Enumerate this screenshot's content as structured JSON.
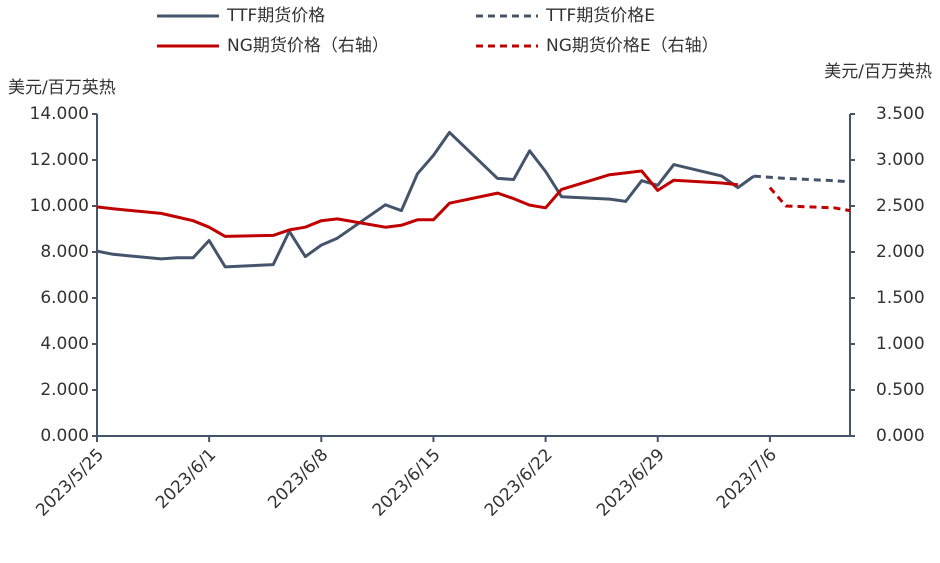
{
  "chart_data": {
    "type": "line",
    "y_label": "美元/百万英热",
    "y2_label": "美元/百万英热",
    "x": [
      "2023/5/25",
      "2023/5/26",
      "2023/5/29",
      "2023/5/30",
      "2023/5/31",
      "2023/6/1",
      "2023/6/2",
      "2023/6/5",
      "2023/6/6",
      "2023/6/7",
      "2023/6/8",
      "2023/6/9",
      "2023/6/12",
      "2023/6/13",
      "2023/6/14",
      "2023/6/15",
      "2023/6/16",
      "2023/6/19",
      "2023/6/20",
      "2023/6/21",
      "2023/6/22",
      "2023/6/23",
      "2023/6/26",
      "2023/6/27",
      "2023/6/28",
      "2023/6/29",
      "2023/6/30",
      "2023/7/3",
      "2023/7/4",
      "2023/7/5",
      "2023/7/6",
      "2023/7/7",
      "2023/7/10",
      "2023/7/11"
    ],
    "series": [
      {
        "name": "TTF期货价格",
        "color": "#44546a",
        "dash": false,
        "values": [
          8.04,
          7.9,
          7.7,
          7.75,
          7.75,
          8.5,
          7.35,
          7.45,
          8.9,
          7.8,
          8.3,
          8.6,
          10.05,
          9.8,
          11.4,
          12.2,
          13.2,
          11.2,
          11.15,
          12.4,
          11.5,
          10.4,
          10.3,
          10.2,
          11.1,
          10.9,
          11.8,
          11.3,
          10.8,
          11.3,
          null,
          null,
          null,
          null
        ]
      },
      {
        "name": "TTF期货价格E",
        "color": "#44546a",
        "dash": true,
        "values": [
          null,
          null,
          null,
          null,
          null,
          null,
          null,
          null,
          null,
          null,
          null,
          null,
          null,
          null,
          null,
          null,
          null,
          null,
          null,
          null,
          null,
          null,
          null,
          null,
          null,
          null,
          null,
          null,
          null,
          11.3,
          11.25,
          11.2,
          11.1,
          11.05
        ]
      },
      {
        "name": "NG期货价格（右轴）",
        "color": "#c00000",
        "dash": false,
        "axis": "y2",
        "values": [
          2.49,
          2.47,
          2.42,
          2.38,
          2.34,
          2.27,
          2.17,
          2.18,
          2.24,
          2.27,
          2.34,
          2.36,
          2.27,
          2.29,
          2.35,
          2.35,
          2.53,
          2.64,
          2.58,
          2.51,
          2.48,
          2.68,
          2.84,
          2.86,
          2.88,
          2.67,
          2.78,
          2.75,
          2.73,
          null,
          null,
          null,
          null,
          null
        ]
      },
      {
        "name": "NG期货价格E（右轴）",
        "color": "#c00000",
        "dash": true,
        "axis": "y2",
        "values": [
          null,
          null,
          null,
          null,
          null,
          null,
          null,
          null,
          null,
          null,
          null,
          null,
          null,
          null,
          null,
          null,
          null,
          null,
          null,
          null,
          null,
          null,
          null,
          null,
          null,
          null,
          null,
          null,
          null,
          null,
          2.7,
          2.5,
          2.48,
          2.45
        ]
      }
    ],
    "xlim": [
      "2023/5/25",
      "2023/7/11"
    ],
    "xticks": [
      "2023/5/25",
      "2023/6/1",
      "2023/6/8",
      "2023/6/15",
      "2023/6/22",
      "2023/6/29",
      "2023/7/6"
    ],
    "ylim": [
      0,
      14
    ],
    "yticks": [
      {
        "value": 0,
        "label": "0.000"
      },
      {
        "value": 2,
        "label": "2.000"
      },
      {
        "value": 4,
        "label": "4.000"
      },
      {
        "value": 6,
        "label": "6.000"
      },
      {
        "value": 8,
        "label": "8.000"
      },
      {
        "value": 10,
        "label": "10.000"
      },
      {
        "value": 12,
        "label": "12.000"
      },
      {
        "value": 14,
        "label": "14.000"
      }
    ],
    "y2lim": [
      0,
      3.5
    ],
    "y2ticks": [
      {
        "value": 0,
        "label": "0.000"
      },
      {
        "value": 0.5,
        "label": "0.500"
      },
      {
        "value": 1,
        "label": "1.000"
      },
      {
        "value": 1.5,
        "label": "1.500"
      },
      {
        "value": 2,
        "label": "2.000"
      },
      {
        "value": 2.5,
        "label": "2.500"
      },
      {
        "value": 3,
        "label": "3.000"
      },
      {
        "value": 3.5,
        "label": "3.500"
      }
    ]
  }
}
